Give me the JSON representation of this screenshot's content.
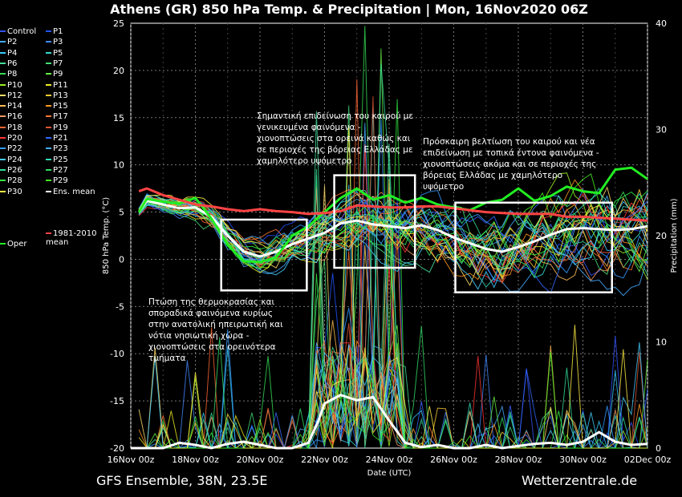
{
  "title": "Athens  (GR)  850 hPa Temp. & Precipitation | Mon, 16Nov2020 06Z",
  "footer": {
    "left": "GFS Ensemble, 38N, 23.5E",
    "right": "Wetterzentrale.de"
  },
  "legend": [
    {
      "label": "Control",
      "color": "#3355ff"
    },
    {
      "label": "P1",
      "color": "#2255ff"
    },
    {
      "label": "P2",
      "color": "#44aaff"
    },
    {
      "label": "P3",
      "color": "#4488ff"
    },
    {
      "label": "P4",
      "color": "#33ccff"
    },
    {
      "label": "P5",
      "color": "#33ddcc"
    },
    {
      "label": "P6",
      "color": "#44dd99"
    },
    {
      "label": "P7",
      "color": "#44dd77"
    },
    {
      "label": "P8",
      "color": "#33dd55"
    },
    {
      "label": "P9",
      "color": "#66ee44"
    },
    {
      "label": "P10",
      "color": "#99ee22"
    },
    {
      "label": "P11",
      "color": "#eeee22"
    },
    {
      "label": "P12",
      "color": "#ffdd66"
    },
    {
      "label": "P13",
      "color": "#ffcc33"
    },
    {
      "label": "P14",
      "color": "#ffbb55"
    },
    {
      "label": "P15",
      "color": "#ff9922"
    },
    {
      "label": "P16",
      "color": "#ee9966"
    },
    {
      "label": "P17",
      "color": "#ff7733"
    },
    {
      "label": "P18",
      "color": "#ff6633"
    },
    {
      "label": "P19",
      "color": "#dd5533"
    },
    {
      "label": "P20",
      "color": "#ff3333"
    },
    {
      "label": "P21",
      "color": "#3366ff"
    },
    {
      "label": "P22",
      "color": "#3399ff"
    },
    {
      "label": "P23",
      "color": "#44aaff"
    },
    {
      "label": "P24",
      "color": "#44ccff"
    },
    {
      "label": "P25",
      "color": "#33ddbb"
    },
    {
      "label": "P26",
      "color": "#33dd99"
    },
    {
      "label": "P27",
      "color": "#33dd66"
    },
    {
      "label": "P28",
      "color": "#33ee44"
    },
    {
      "label": "P29",
      "color": "#44ee22"
    },
    {
      "label": "P30",
      "color": "#ffee44"
    },
    {
      "label": "Ens. mean",
      "color": "#ffffff"
    },
    {
      "label": "Oper",
      "color": "#22ee22"
    },
    {
      "label": "1981-2010\nmean",
      "color": "#ff4444"
    }
  ],
  "annotations": [
    "Σημαντική επιδείνωση του καιρού με\nγενικευμένα φαινόμενα -\nχιονοπτώσεις στα ορεινά καθώς και\nσε περιοχές της βόρειας Ελλάδας με\nχαμηλότερο υψόμετρο",
    "Πρόσκαιρη βελτίωση του καιρού και νέα\nεπιδείνωση με τοπικά έντονα φαινόμενα -\nχιονοπτώσεις ακόμα και σε περιοχές της\nβόρειας Ελλάδας με χαμηλότερο\nυψόμετρο",
    "Πτώση της θερμοκρασίας και\nσποραδικά φαινόμενα κυρίως\nστην ανατολική ηπειρωτική και\nνότια νησιωτική χώρα -\nχιονοπτώσεις στα ορεινότερα\nτμήματα"
  ],
  "chart_data": {
    "type": "line",
    "xlabel": "Date (UTC)",
    "ylabel": "850 hPa Temp. (°C)",
    "y2label": "Precipitation (mm)",
    "xlim": [
      0,
      16
    ],
    "ylim": [
      -20,
      25
    ],
    "y2lim": [
      0,
      40
    ],
    "x_ticks": [
      "16Nov 00z",
      "18Nov 00z",
      "20Nov 00z",
      "22Nov 00z",
      "24Nov 00z",
      "26Nov 00z",
      "28Nov 00z",
      "30Nov 00z",
      "02Dec 00z"
    ],
    "y_ticks": [
      -20,
      -15,
      -10,
      -5,
      0,
      5,
      10,
      15,
      20,
      25
    ],
    "y2_ticks": [
      0,
      10,
      20,
      30,
      40
    ],
    "x_unit": "days after 16Nov2020 00z",
    "series": [
      {
        "name": "Ens. mean",
        "color": "#ffffff",
        "width": 3,
        "x": [
          0.25,
          0.5,
          1,
          1.5,
          2,
          2.5,
          3,
          3.5,
          4,
          4.5,
          5,
          5.5,
          6,
          6.5,
          7,
          7.5,
          8,
          8.5,
          9,
          9.5,
          10,
          10.5,
          11,
          11.5,
          12,
          12.5,
          13,
          13.5,
          14,
          14.5,
          15,
          15.5,
          16
        ],
        "y": [
          5,
          6.2,
          5.8,
          5.4,
          5.5,
          4.5,
          2.5,
          0.8,
          0.3,
          0.8,
          1.6,
          2.2,
          2.8,
          3.8,
          4.1,
          3.7,
          3.5,
          3.3,
          3.6,
          3.1,
          2.3,
          1.7,
          1.1,
          0.8,
          1.3,
          1.9,
          2.6,
          3.2,
          3.3,
          3.2,
          3.1,
          3.2,
          3.5
        ]
      },
      {
        "name": "Oper",
        "color": "#22ee22",
        "width": 3,
        "x": [
          0.25,
          0.5,
          1,
          1.5,
          2,
          2.5,
          3,
          3.5,
          4,
          4.5,
          5,
          5.5,
          6,
          6.5,
          7,
          7.5,
          8,
          8.5,
          9,
          9.5,
          10,
          10.5,
          11,
          11.5,
          12,
          12.5,
          13,
          13.5,
          14,
          14.5,
          15,
          15.5,
          16
        ],
        "y": [
          5,
          6.4,
          6.1,
          5.9,
          6.5,
          4.3,
          1.5,
          -0.2,
          -0.3,
          0.2,
          2.5,
          3.5,
          5,
          6.5,
          7.5,
          6.3,
          6.8,
          6.0,
          6.5,
          5.8,
          5.5,
          5.2,
          6,
          6.3,
          7.5,
          6.2,
          6.7,
          7.7,
          7.2,
          7.0,
          9.5,
          9.7,
          8.5
        ]
      },
      {
        "name": "1981-2010 mean",
        "color": "#ff4444",
        "width": 3,
        "x": [
          0.25,
          0.5,
          1,
          1.5,
          2,
          2.5,
          3,
          3.5,
          4,
          4.5,
          5,
          5.5,
          6,
          6.5,
          7,
          7.5,
          8,
          8.5,
          9,
          9.5,
          10,
          10.5,
          11,
          11.5,
          12,
          12.5,
          13,
          13.5,
          14,
          14.5,
          15,
          15.5,
          16
        ],
        "y": [
          7.2,
          7.5,
          6.8,
          6.3,
          5.8,
          5.6,
          5.3,
          5.1,
          5.3,
          5.1,
          5.0,
          4.8,
          4.9,
          5.1,
          5.7,
          5.6,
          5.5,
          5.5,
          5.6,
          5.6,
          5.4,
          5.2,
          5.0,
          4.9,
          4.8,
          4.8,
          4.8,
          4.5,
          4.5,
          4.4,
          4.3,
          4.2,
          4.1
        ]
      }
    ],
    "precip_mean": {
      "name": "Ens. mean precipitation",
      "color": "#ffffff",
      "x": [
        0,
        1,
        1.5,
        2,
        2.5,
        3,
        3.5,
        4,
        4.5,
        5,
        5.5,
        5.8,
        6,
        6.5,
        7,
        7.5,
        8,
        8.5,
        9,
        9.5,
        10,
        10.5,
        11,
        11.5,
        12,
        12.5,
        13,
        13.5,
        14,
        14.5,
        15,
        15.5,
        16
      ],
      "y": [
        0,
        0,
        0.5,
        0.3,
        0,
        0.4,
        0.6,
        0.3,
        0,
        0,
        0.5,
        2.5,
        4.2,
        5,
        4.5,
        4.8,
        2.6,
        0.5,
        0.1,
        0.3,
        0,
        0,
        0.3,
        0,
        0.2,
        0.4,
        0.5,
        0.3,
        0.6,
        1.5,
        0.6,
        0.3,
        0.4
      ]
    },
    "boxes": [
      {
        "x": [
          2.8,
          5.45
        ],
        "y": [
          -3.3,
          4.2
        ]
      },
      {
        "x": [
          6.3,
          8.8
        ],
        "y": [
          -0.9,
          8.9
        ]
      },
      {
        "x": [
          10.05,
          14.9
        ],
        "y": [
          -3.5,
          6
        ]
      }
    ]
  }
}
